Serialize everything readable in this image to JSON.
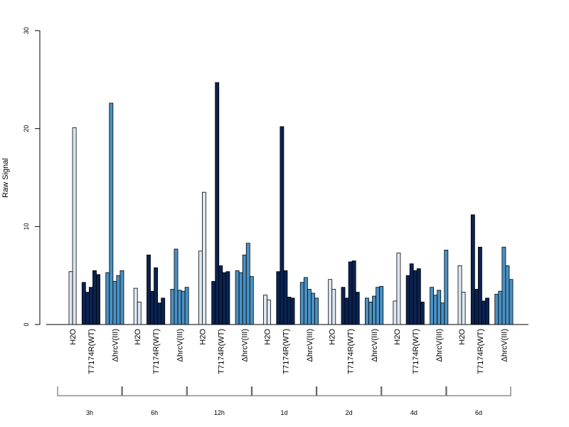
{
  "chart_data": {
    "type": "bar",
    "title": "",
    "xlabel": "",
    "ylabel": "Raw Signal",
    "ylim": [
      0,
      30
    ],
    "yticks": [
      0,
      10,
      20,
      30
    ],
    "grid": false,
    "legend": "none",
    "colors": {
      "H2O": "#dde8f3",
      "T7174R(WT)": "#0a2352",
      "ΔhrcV(III)": "#4a91c4"
    },
    "timepoints": [
      {
        "label": "3h",
        "groups": [
          {
            "name": "H2O",
            "values": [
              5.4,
              20.1
            ]
          },
          {
            "name": "T7174R(WT)",
            "values": [
              4.3,
              3.3,
              3.8,
              5.5,
              5.1
            ]
          },
          {
            "name": "ΔhrcV(III)",
            "values": [
              5.3,
              22.6,
              4.4,
              5.0,
              5.5
            ]
          }
        ]
      },
      {
        "label": "6h",
        "groups": [
          {
            "name": "H2O",
            "values": [
              3.7,
              2.3
            ]
          },
          {
            "name": "T7174R(WT)",
            "values": [
              7.1,
              3.4,
              5.8,
              2.2,
              2.7
            ]
          },
          {
            "name": "ΔhrcV(III)",
            "values": [
              3.6,
              7.7,
              3.5,
              3.4,
              3.8
            ]
          }
        ]
      },
      {
        "label": "12h",
        "groups": [
          {
            "name": "H2O",
            "values": [
              7.5,
              13.5
            ]
          },
          {
            "name": "T7174R(WT)",
            "values": [
              4.4,
              24.7,
              6.0,
              5.3,
              5.4
            ]
          },
          {
            "name": "ΔhrcV(III)",
            "values": [
              5.5,
              5.3,
              7.1,
              8.3,
              4.9
            ]
          }
        ]
      },
      {
        "label": "1d",
        "groups": [
          {
            "name": "H2O",
            "values": [
              3.0,
              2.5
            ]
          },
          {
            "name": "T7174R(WT)",
            "values": [
              5.4,
              20.2,
              5.5,
              2.8,
              2.7
            ]
          },
          {
            "name": "ΔhrcV(III)",
            "values": [
              4.3,
              4.8,
              3.6,
              3.2,
              2.7
            ]
          }
        ]
      },
      {
        "label": "2d",
        "groups": [
          {
            "name": "H2O",
            "values": [
              4.6,
              3.6
            ]
          },
          {
            "name": "T7174R(WT)",
            "values": [
              3.8,
              2.7,
              6.4,
              6.5,
              3.3
            ]
          },
          {
            "name": "ΔhrcV(III)",
            "values": [
              2.7,
              2.3,
              2.9,
              3.8,
              3.9
            ]
          }
        ]
      },
      {
        "label": "4d",
        "groups": [
          {
            "name": "H2O",
            "values": [
              2.4,
              7.3
            ]
          },
          {
            "name": "T7174R(WT)",
            "values": [
              5.0,
              6.2,
              5.5,
              5.7,
              2.3
            ]
          },
          {
            "name": "ΔhrcV(III)",
            "values": [
              3.8,
              3.0,
              3.5,
              2.2,
              7.6
            ]
          }
        ]
      },
      {
        "label": "6d",
        "groups": [
          {
            "name": "H2O",
            "values": [
              6.0,
              3.3
            ]
          },
          {
            "name": "T7174R(WT)",
            "values": [
              11.2,
              3.6,
              7.9,
              2.4,
              2.7
            ]
          },
          {
            "name": "ΔhrcV(III)",
            "values": [
              3.1,
              3.4,
              7.9,
              6.0,
              4.6
            ]
          }
        ]
      }
    ]
  }
}
